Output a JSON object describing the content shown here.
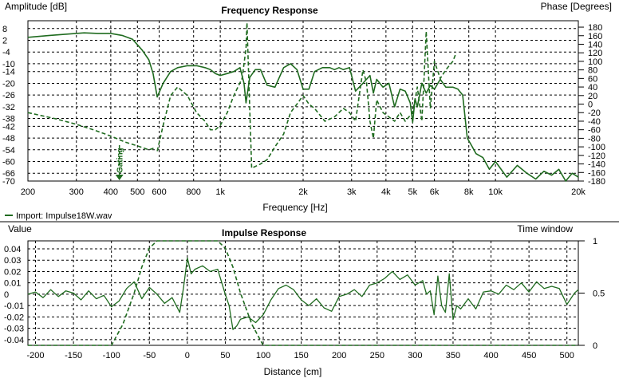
{
  "frequency_panel": {
    "title": "Frequency Response",
    "left_axis_label": "Amplitude [dB]",
    "right_axis_label": "Phase [Degrees]",
    "x_axis_label": "Frequency [Hz]",
    "legend_label": "Import: Impulse18W.wav",
    "gating_marker_label": "Gating"
  },
  "impulse_panel": {
    "title": "Impulse Response",
    "left_axis_label": "Value",
    "right_axis_label": "Time window",
    "x_axis_label": "Distance [cm]"
  },
  "colors": {
    "trace": "#1f6b1f",
    "grid": "#000000",
    "background": "#ffffff"
  },
  "chart_data": [
    {
      "type": "line",
      "title": "Frequency Response",
      "xlabel": "Frequency [Hz]",
      "ylabel": "Amplitude [dB]",
      "y2label": "Phase [Degrees]",
      "x_scale": "log",
      "xlim": [
        200,
        20000
      ],
      "ylim": [
        -70,
        12
      ],
      "y2lim": [
        -180,
        195
      ],
      "x_ticks": [
        200,
        300,
        400,
        500,
        600,
        800,
        1000,
        2000,
        3000,
        4000,
        5000,
        6000,
        8000,
        10000,
        20000
      ],
      "x_tick_labels": [
        "200",
        "300",
        "400",
        "500",
        "600",
        "800",
        "1k",
        "2k",
        "3k",
        "4k",
        "5k",
        "6k",
        "8k",
        "10k",
        "20k"
      ],
      "y_ticks": [
        8,
        2,
        -4,
        -10,
        -14,
        -20,
        -26,
        -32,
        -38,
        -42,
        -48,
        -54,
        -60,
        -66,
        -70
      ],
      "y2_ticks": [
        180,
        160,
        140,
        120,
        100,
        80,
        60,
        40,
        20,
        0,
        -20,
        -40,
        -60,
        -80,
        -100,
        -120,
        -140,
        -160,
        -180
      ],
      "grid": true,
      "legend": "bottom-left",
      "gating_marker_hz": 430,
      "series": [
        {
          "name": "Import: Impulse18W.wav",
          "style": "solid",
          "axis": "left",
          "x": [
            200,
            240,
            280,
            320,
            360,
            400,
            440,
            480,
            520,
            550,
            570,
            590,
            620,
            660,
            700,
            760,
            820,
            880,
            920,
            960,
            1000,
            1060,
            1120,
            1180,
            1220,
            1240,
            1280,
            1340,
            1400,
            1480,
            1580,
            1700,
            1800,
            1900,
            2000,
            2100,
            2200,
            2350,
            2500,
            2600,
            2700,
            2800,
            2950,
            3100,
            3300,
            3500,
            3600,
            3700,
            3900,
            4100,
            4300,
            4500,
            4700,
            4900,
            5000,
            5100,
            5200,
            5400,
            5600,
            5800,
            6000,
            6300,
            6600,
            7000,
            7300,
            7600,
            7900,
            8200,
            8500,
            9000,
            9500,
            10000,
            11000,
            12000,
            13000,
            14000,
            15000,
            16000,
            17000,
            18000,
            19000,
            20000
          ],
          "y": [
            3.5,
            4.5,
            5.2,
            5.8,
            5.5,
            5.5,
            4.5,
            2.5,
            -3,
            -8,
            -15,
            -27,
            -20,
            -14,
            -12,
            -11,
            -11,
            -12,
            -13,
            -15,
            -16,
            -15,
            -14,
            -12,
            -20,
            -30,
            -17,
            -13,
            -13,
            -21,
            -22,
            -12,
            -10,
            -13,
            -23,
            -23,
            -14,
            -12,
            -12,
            -13,
            -12,
            -13,
            -12,
            -24,
            -20,
            -16,
            -25,
            -18,
            -22,
            -20,
            -32,
            -23,
            -24,
            -30,
            -40,
            -28,
            -32,
            -20,
            -25,
            -21,
            -23,
            -18,
            -22,
            -22,
            -23,
            -26,
            -48,
            -52,
            -56,
            -58,
            -64,
            -60,
            -68,
            -62,
            -66,
            -69,
            -65,
            -67,
            -64,
            -70,
            -66,
            -68
          ]
        },
        {
          "name": "",
          "style": "dashed",
          "axis": "left",
          "x": [
            200,
            250,
            300,
            350,
            400,
            450,
            500,
            550,
            580
          ],
          "y": [
            -35,
            -38,
            -41,
            -44,
            -47,
            -50,
            -52,
            -54,
            -53
          ]
        },
        {
          "name": "",
          "style": "dashed",
          "axis": "right",
          "x": [
            590,
            620,
            660,
            700,
            760,
            820,
            880,
            920,
            960,
            1000,
            1060,
            1120,
            1200,
            1240,
            1250,
            1300,
            1350,
            1400,
            1480,
            1580,
            1700,
            1800,
            1900,
            2000,
            2100,
            2200,
            2400,
            2600,
            2800,
            2950,
            3100,
            3300,
            3400,
            3500,
            3600,
            3700,
            3900,
            4100,
            4300,
            4500,
            4700,
            5000,
            5200,
            5400,
            5500,
            5600,
            5800,
            6000,
            6300,
            6600,
            7000,
            7200
          ],
          "y": [
            -110,
            -50,
            20,
            40,
            20,
            -20,
            -40,
            -60,
            -60,
            -50,
            -20,
            20,
            60,
            130,
            190,
            -150,
            -145,
            -140,
            -130,
            -100,
            -70,
            -20,
            0,
            20,
            0,
            -10,
            -40,
            -30,
            -10,
            -20,
            -40,
            80,
            50,
            -40,
            -80,
            10,
            -20,
            -30,
            -40,
            -20,
            -40,
            -20,
            40,
            -40,
            60,
            170,
            -10,
            100,
            60,
            80,
            100,
            120
          ]
        }
      ]
    },
    {
      "type": "line",
      "title": "Impulse Response",
      "xlabel": "Distance [cm]",
      "ylabel": "Value",
      "y2label": "Time window",
      "xlim": [
        -210,
        515
      ],
      "ylim": [
        -0.045,
        0.047
      ],
      "y2lim": [
        0,
        1
      ],
      "x_ticks": [
        -200,
        -150,
        -100,
        -50,
        0,
        50,
        100,
        150,
        200,
        250,
        300,
        350,
        400,
        450,
        500
      ],
      "y_ticks": [
        0.04,
        0.03,
        0.02,
        0.01,
        0,
        -0.01,
        -0.02,
        -0.03,
        -0.04
      ],
      "y_tick_labels": [
        "0.04",
        "0.03",
        "0.02",
        "0.01",
        "0",
        "-0.01",
        "-0.02",
        "-0.03",
        "-0.04"
      ],
      "y2_ticks": [
        1,
        0.5,
        0
      ],
      "grid": true,
      "series": [
        {
          "name": "",
          "style": "solid",
          "axis": "left",
          "x": [
            -210,
            -200,
            -190,
            -180,
            -170,
            -160,
            -150,
            -140,
            -130,
            -120,
            -110,
            -100,
            -90,
            -80,
            -70,
            -60,
            -50,
            -40,
            -30,
            -20,
            -10,
            -5,
            0,
            5,
            10,
            20,
            30,
            40,
            50,
            55,
            60,
            65,
            70,
            80,
            90,
            100,
            110,
            120,
            130,
            140,
            150,
            160,
            170,
            180,
            190,
            200,
            210,
            220,
            230,
            240,
            250,
            260,
            270,
            280,
            290,
            300,
            310,
            315,
            320,
            325,
            330,
            335,
            340,
            345,
            350,
            355,
            360,
            370,
            380,
            390,
            400,
            410,
            420,
            430,
            440,
            450,
            460,
            470,
            480,
            490,
            500,
            510,
            515
          ],
          "y": [
            0.0,
            0.002,
            -0.003,
            0.004,
            -0.002,
            0.003,
            0.001,
            -0.005,
            0.003,
            -0.004,
            -0.001,
            -0.011,
            -0.006,
            0.005,
            0.011,
            -0.004,
            0.006,
            0.0,
            -0.008,
            -0.003,
            -0.016,
            0.006,
            0.032,
            0.018,
            0.022,
            0.025,
            0.02,
            0.022,
            0.0,
            -0.01,
            -0.031,
            -0.028,
            -0.022,
            -0.02,
            -0.025,
            -0.018,
            -0.005,
            0.005,
            0.008,
            0.004,
            -0.005,
            -0.01,
            -0.004,
            -0.012,
            -0.015,
            -0.002,
            0.0,
            0.004,
            -0.002,
            0.008,
            0.01,
            0.014,
            0.02,
            0.013,
            0.017,
            0.008,
            0.012,
            0.0,
            0.003,
            -0.018,
            0.016,
            -0.01,
            -0.016,
            0.018,
            -0.022,
            -0.01,
            -0.013,
            -0.004,
            -0.013,
            0.002,
            0.003,
            0.0,
            0.008,
            0.004,
            0.01,
            0.002,
            0.011,
            0.005,
            0.007,
            0.005,
            -0.009,
            0.001,
            0.004
          ]
        },
        {
          "name": "",
          "style": "dashed",
          "axis": "right",
          "x": [
            -210,
            -100,
            -85,
            -70,
            -60,
            -50,
            -40,
            0,
            40,
            50,
            60,
            70,
            85,
            100,
            515
          ],
          "y": [
            0,
            0,
            0.2,
            0.5,
            0.75,
            0.93,
            1,
            1,
            1,
            0.93,
            0.75,
            0.5,
            0.2,
            0,
            0
          ]
        }
      ]
    }
  ]
}
